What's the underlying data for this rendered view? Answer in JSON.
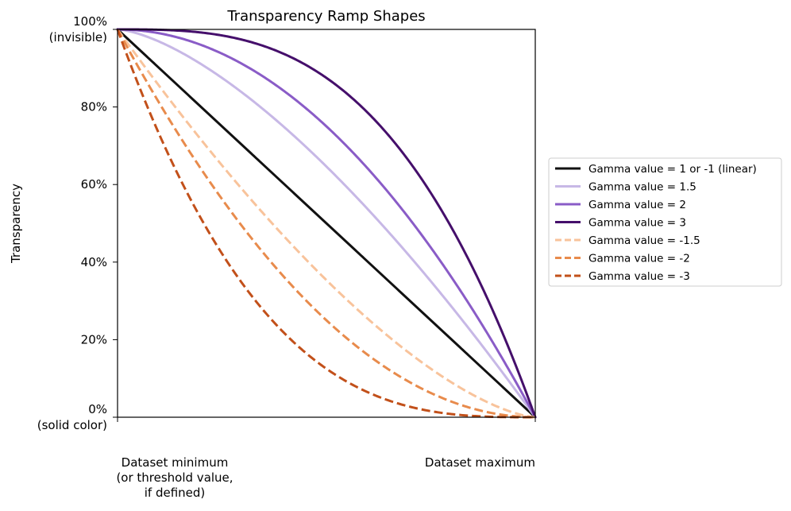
{
  "chart_data": {
    "type": "line",
    "title": "Transparency Ramp Shapes",
    "ylabel": "Transparency",
    "xlabel": "",
    "xlim": [
      0,
      1
    ],
    "ylim": [
      0,
      100
    ],
    "x_ticks": [
      {
        "value": 0,
        "lines": [
          "Dataset minimum",
          "(or threshold value,",
          "if defined)"
        ]
      },
      {
        "value": 1,
        "lines": [
          "Dataset maximum"
        ]
      }
    ],
    "y_ticks": [
      {
        "value": 0,
        "lines": [
          "0%",
          "(solid color)"
        ]
      },
      {
        "value": 20,
        "lines": [
          "20%"
        ]
      },
      {
        "value": 40,
        "lines": [
          "40%"
        ]
      },
      {
        "value": 60,
        "lines": [
          "60%"
        ]
      },
      {
        "value": 80,
        "lines": [
          "80%"
        ]
      },
      {
        "value": 100,
        "lines": [
          "100%",
          "(invisible)"
        ]
      }
    ],
    "legend_position": "right",
    "grid": false,
    "series": [
      {
        "name": "Gamma value = 1 or -1 (linear)",
        "gamma": 1,
        "color": "#111111",
        "dashed": false
      },
      {
        "name": "Gamma value = 1.5",
        "gamma": 1.5,
        "color": "#c7b8e6",
        "dashed": false
      },
      {
        "name": "Gamma value = 2",
        "gamma": 2,
        "color": "#8a5cc7",
        "dashed": false
      },
      {
        "name": "Gamma value = 3",
        "gamma": 3,
        "color": "#450f6b",
        "dashed": false
      },
      {
        "name": "Gamma value = -1.5",
        "gamma": -1.5,
        "color": "#f8c39b",
        "dashed": true
      },
      {
        "name": "Gamma value = -2",
        "gamma": -2,
        "color": "#e88b4c",
        "dashed": true
      },
      {
        "name": "Gamma value = -3",
        "gamma": -3,
        "color": "#c2501a",
        "dashed": true
      }
    ]
  }
}
